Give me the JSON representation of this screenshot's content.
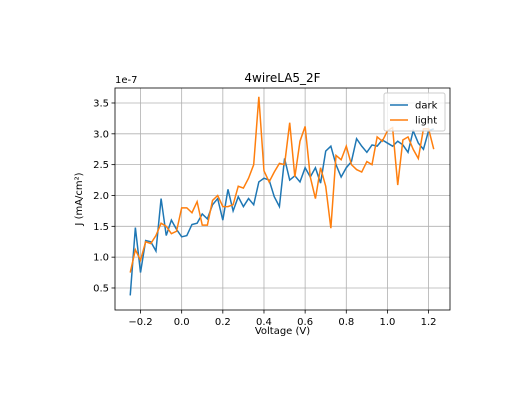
{
  "chart_data": {
    "type": "line",
    "title": "4wireLA5_2F",
    "xlabel": "Voltage (V)",
    "ylabel": "J (mA/cm²)",
    "y_offset_text": "1e-7",
    "x": [
      -0.25,
      -0.225,
      -0.2,
      -0.175,
      -0.15,
      -0.125,
      -0.1,
      -0.075,
      -0.05,
      -0.025,
      0,
      0.025,
      0.05,
      0.075,
      0.1,
      0.125,
      0.15,
      0.175,
      0.2,
      0.225,
      0.25,
      0.275,
      0.3,
      0.325,
      0.35,
      0.375,
      0.4,
      0.425,
      0.45,
      0.475,
      0.5,
      0.525,
      0.55,
      0.575,
      0.6,
      0.625,
      0.65,
      0.675,
      0.7,
      0.725,
      0.75,
      0.775,
      0.8,
      0.825,
      0.85,
      0.875,
      0.9,
      0.925,
      0.95,
      0.975,
      1.0,
      1.025,
      1.05,
      1.075,
      1.1,
      1.125,
      1.15,
      1.175,
      1.2,
      1.225
    ],
    "series": [
      {
        "name": "dark",
        "color": "#1f77b4",
        "values": [
          0.38,
          1.48,
          0.75,
          1.27,
          1.25,
          1.1,
          1.95,
          1.35,
          1.6,
          1.45,
          1.33,
          1.35,
          1.53,
          1.55,
          1.7,
          1.62,
          1.85,
          1.95,
          1.6,
          2.1,
          1.75,
          1.98,
          1.82,
          1.95,
          1.85,
          2.22,
          2.28,
          2.25,
          1.98,
          1.82,
          2.6,
          2.25,
          2.32,
          2.22,
          2.45,
          2.3,
          2.45,
          2.2,
          2.72,
          2.8,
          2.5,
          2.3,
          2.45,
          2.55,
          2.92,
          2.8,
          2.7,
          2.82,
          2.8,
          2.9,
          2.85,
          2.8,
          2.88,
          2.82,
          2.7,
          3.05,
          2.85,
          2.75,
          3.05,
          3.08
        ]
      },
      {
        "name": "light",
        "color": "#ff7f0e",
        "values": [
          0.75,
          1.12,
          0.95,
          1.25,
          1.22,
          1.35,
          1.55,
          1.5,
          1.38,
          1.42,
          1.8,
          1.8,
          1.72,
          1.9,
          1.52,
          1.52,
          1.92,
          2.0,
          1.82,
          1.82,
          1.85,
          2.15,
          2.12,
          2.28,
          2.5,
          3.6,
          2.4,
          2.22,
          2.38,
          2.52,
          2.5,
          3.18,
          2.3,
          2.88,
          3.12,
          2.3,
          1.95,
          2.45,
          2.15,
          1.47,
          2.65,
          2.58,
          2.8,
          2.5,
          2.42,
          2.38,
          2.55,
          2.5,
          2.95,
          2.88,
          3.05,
          3.1,
          2.17,
          2.9,
          2.95,
          2.75,
          2.6,
          3.08,
          3.08,
          2.75
        ]
      }
    ],
    "xlim": [
      -0.324,
      1.304
    ],
    "ylim": [
      0.143,
      3.743
    ],
    "xticks": [
      {
        "value": -0.2,
        "label": "−0.2"
      },
      {
        "value": 0,
        "label": "0.0"
      },
      0.2,
      0.4,
      0.6,
      0.8,
      {
        "value": 1,
        "label": "1.0"
      },
      1.2
    ],
    "yticks": [
      0.5,
      {
        "value": 1,
        "label": "1.0"
      },
      1.5,
      {
        "value": 2,
        "label": "2.0"
      },
      2.5,
      {
        "value": 3,
        "label": "3.0"
      },
      3.5
    ],
    "grid": true,
    "legend": "upper right"
  }
}
